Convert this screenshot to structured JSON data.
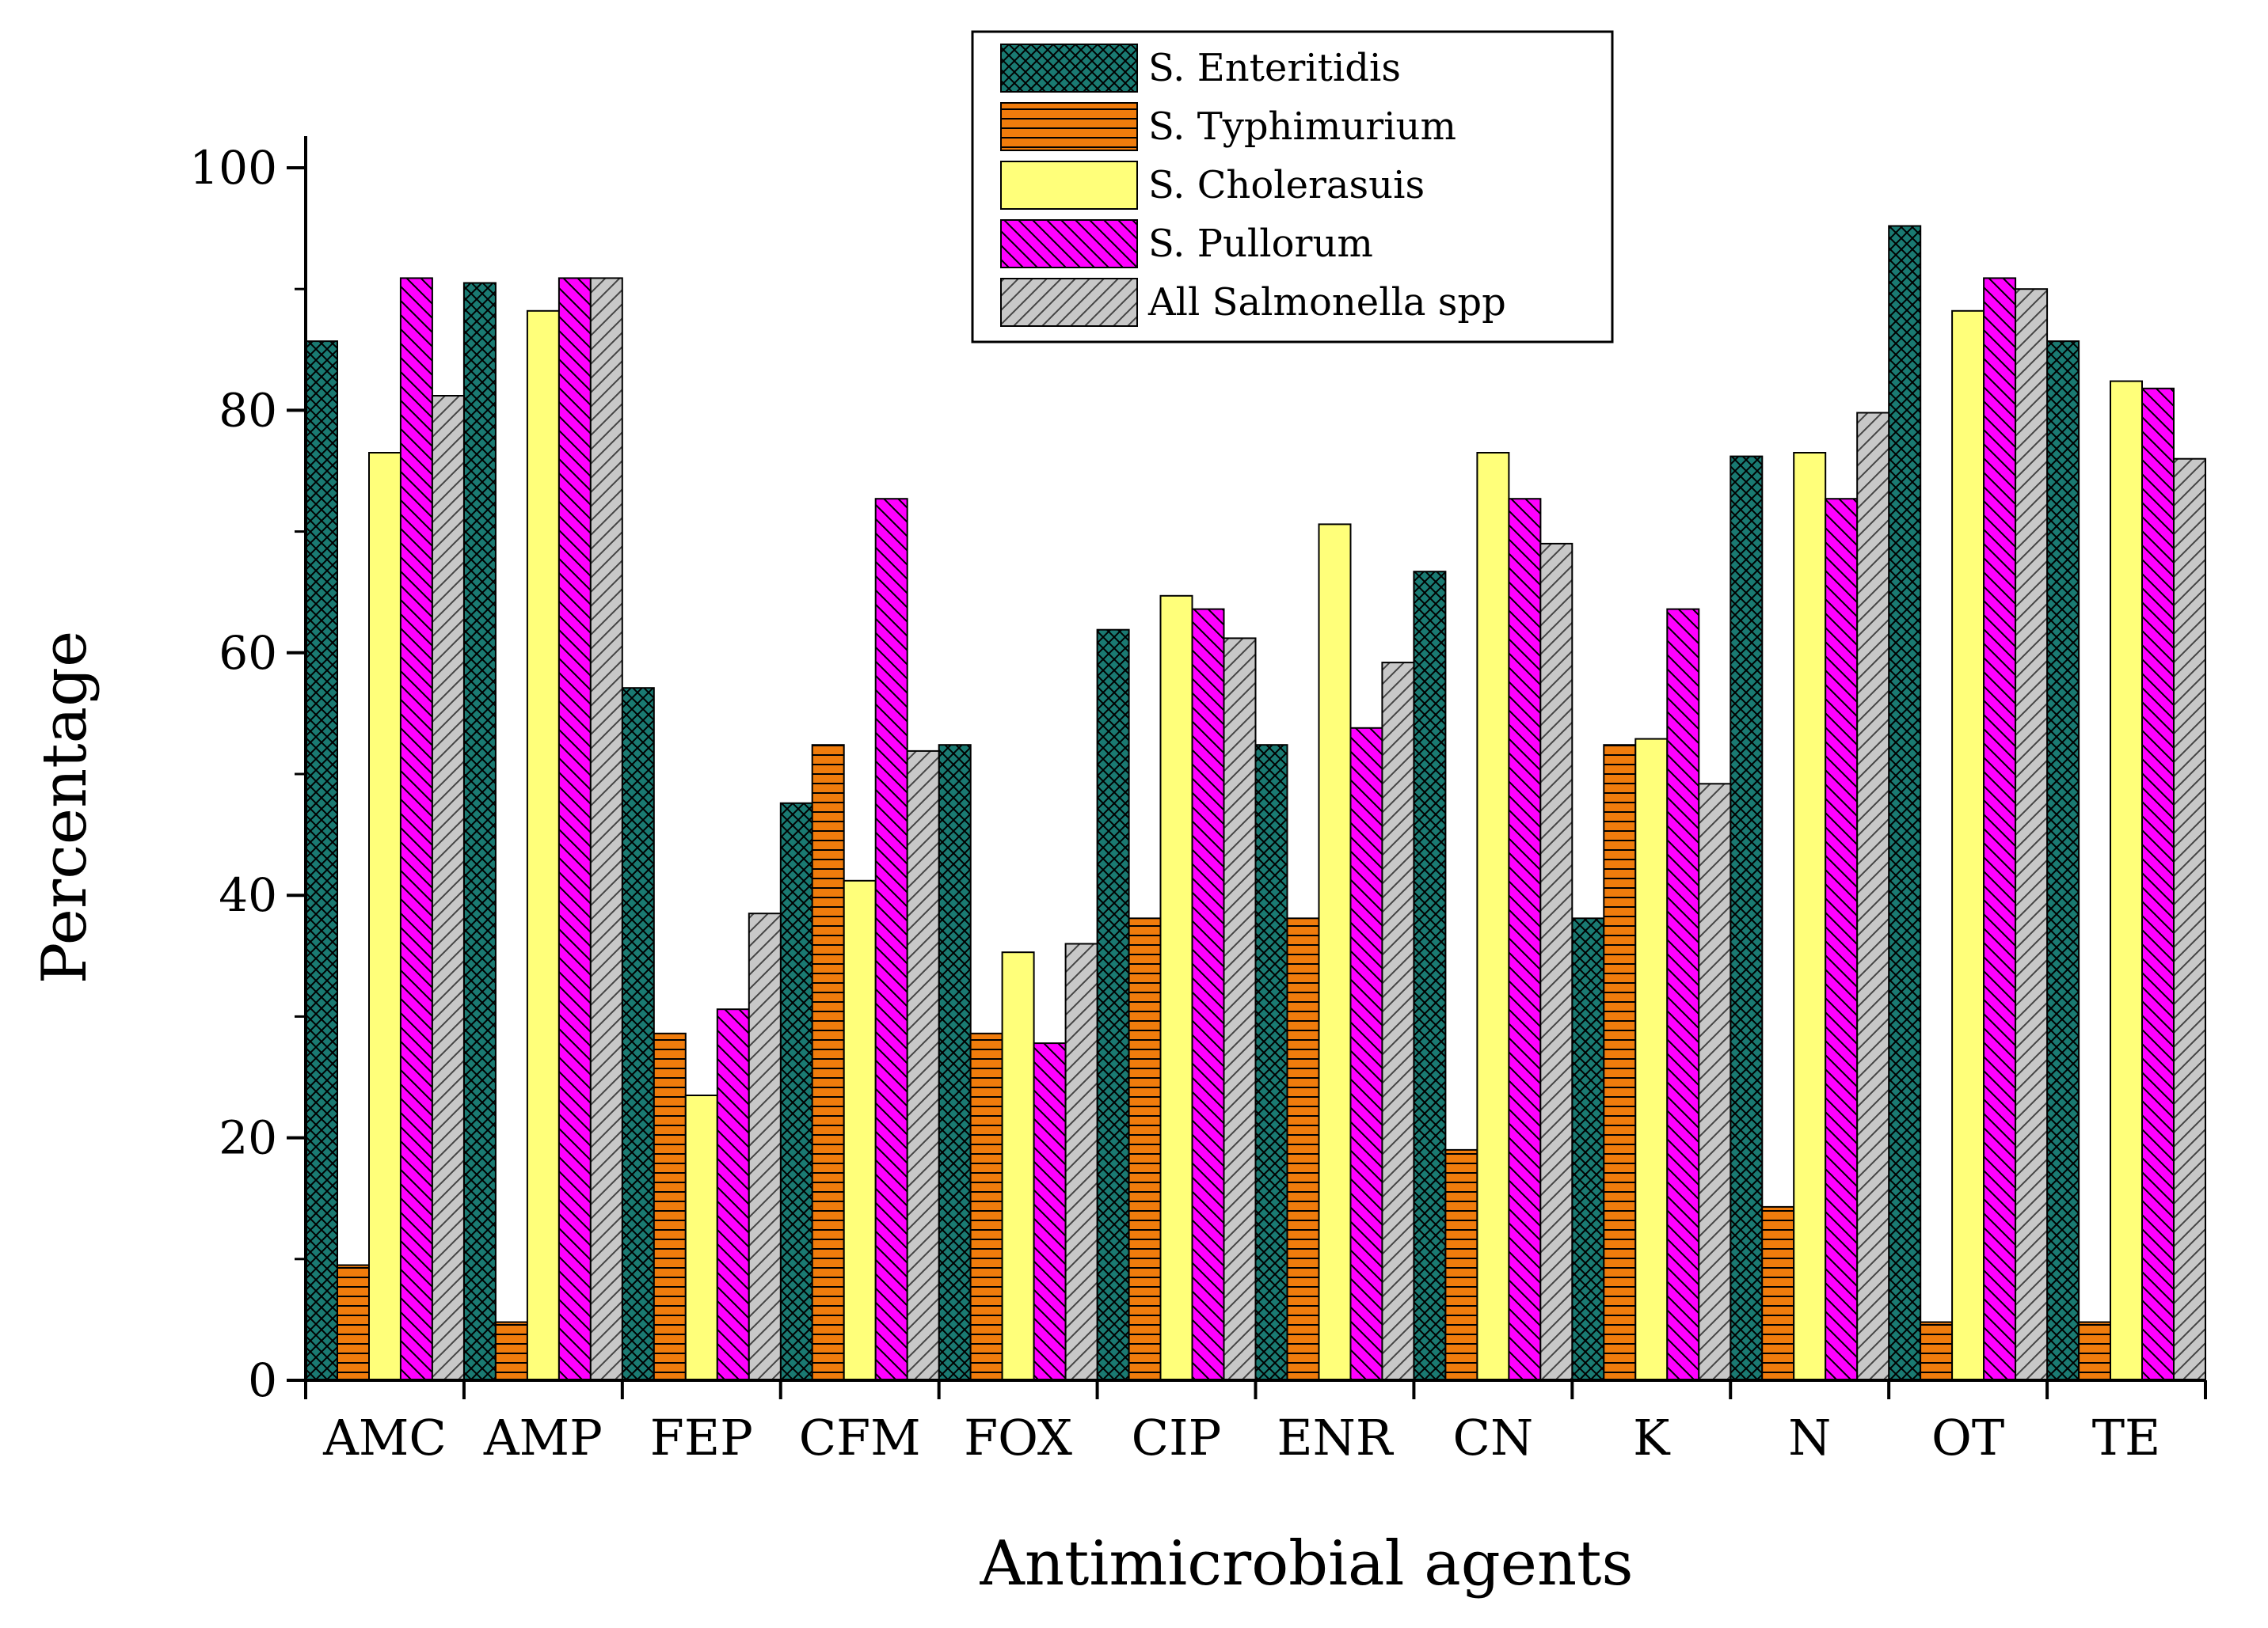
{
  "chart_data": {
    "type": "bar",
    "title": "",
    "xlabel": "Antimicrobial agents",
    "ylabel": "Percentage",
    "ylim": [
      0,
      100
    ],
    "yticks": [
      "0",
      "20",
      "40",
      "60",
      "80",
      "100"
    ],
    "categories": [
      "AMC",
      "AMP",
      "FEP",
      "CFM",
      "FOX",
      "CIP",
      "ENR",
      "CN",
      "K",
      "N",
      "OT",
      "TE"
    ],
    "legend_position": "top-right",
    "series": [
      {
        "name": "S. Enteritidis",
        "color": "#1a7a72",
        "pattern": "crosshatch",
        "values": [
          85.7,
          90.5,
          57.1,
          47.6,
          52.4,
          61.9,
          52.4,
          66.7,
          38.1,
          76.2,
          95.2,
          85.7
        ]
      },
      {
        "name": "S. Typhimurium",
        "color": "#f07c0c",
        "pattern": "horizontal",
        "values": [
          9.5,
          4.8,
          28.6,
          52.4,
          28.6,
          38.1,
          38.1,
          19.0,
          52.4,
          14.3,
          4.8,
          4.8
        ]
      },
      {
        "name": "S. Cholerasuis",
        "color": "#ffff7a",
        "pattern": "none",
        "values": [
          76.5,
          88.2,
          23.5,
          41.2,
          35.3,
          64.7,
          70.6,
          76.5,
          52.9,
          76.5,
          88.2,
          82.4
        ]
      },
      {
        "name": "S. Pullorum",
        "color": "#ff00ff",
        "pattern": "backslash",
        "values": [
          90.9,
          90.9,
          30.6,
          72.7,
          27.8,
          63.6,
          53.8,
          72.7,
          63.6,
          72.7,
          90.9,
          81.8
        ]
      },
      {
        "name": "All Salmonella spp",
        "color": "#c8c8c8",
        "pattern": "slash",
        "values": [
          81.2,
          90.9,
          38.5,
          51.9,
          36.0,
          61.2,
          59.2,
          69.0,
          49.2,
          79.8,
          90.0,
          76.0
        ]
      }
    ]
  }
}
